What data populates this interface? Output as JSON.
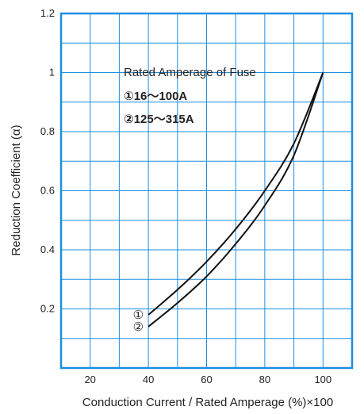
{
  "chart_data": {
    "type": "line",
    "xlabel": "Conduction Current / Rated Amperage (%)×100",
    "ylabel": "Reduction Coefficient (α)",
    "xlim": [
      10,
      110
    ],
    "ylim": [
      0,
      1.2
    ],
    "x_ticks": [
      "20",
      "40",
      "60",
      "80",
      "100"
    ],
    "y_ticks": [
      "0.2",
      "0.4",
      "0.6",
      "0.8",
      "1",
      "1.2"
    ],
    "grid": true,
    "legend": {
      "title": "Rated Amperage of Fuse",
      "entries": [
        "①16〜100A",
        "②125〜315A"
      ],
      "placement": "upper-middle"
    },
    "series": [
      {
        "name": "①",
        "x": [
          40,
          50,
          60,
          70,
          80,
          90,
          100
        ],
        "y": [
          0.18,
          0.265,
          0.36,
          0.47,
          0.6,
          0.76,
          1.0
        ]
      },
      {
        "name": "②",
        "x": [
          40,
          50,
          60,
          70,
          80,
          90,
          100
        ],
        "y": [
          0.14,
          0.22,
          0.31,
          0.42,
          0.55,
          0.72,
          1.0
        ]
      }
    ],
    "colors": {
      "frame": "#1a8fe0",
      "grid": "#1a8fe0",
      "curve": "#111111"
    }
  }
}
